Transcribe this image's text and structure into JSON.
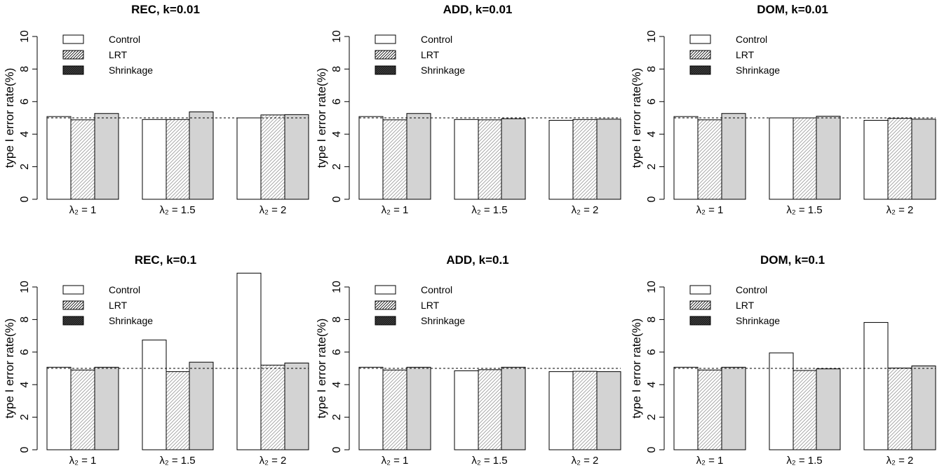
{
  "chart_data": [
    {
      "type": "bar",
      "title": "REC, k=0.01",
      "ylabel": "type I error rate(%)",
      "ylim": [
        0,
        10
      ],
      "yticks": [
        "0",
        "2",
        "4",
        "6",
        "8",
        "10"
      ],
      "categories": [
        "λ₂ = 1",
        "λ₂ = 1.5",
        "λ₂ = 2"
      ],
      "reference_line": 5,
      "legend": [
        "Control",
        "LRT",
        "Shrinkage"
      ],
      "series": [
        {
          "name": "Control",
          "values": [
            5.08,
            4.9,
            5.0
          ]
        },
        {
          "name": "LRT",
          "values": [
            4.88,
            4.9,
            5.18
          ]
        },
        {
          "name": "Shrinkage",
          "values": [
            5.27,
            5.37,
            5.2
          ]
        }
      ]
    },
    {
      "type": "bar",
      "title": "ADD, k=0.01",
      "ylabel": "type I error rate(%)",
      "ylim": [
        0,
        10
      ],
      "yticks": [
        "0",
        "2",
        "4",
        "6",
        "8",
        "10"
      ],
      "categories": [
        "λ₂ = 1",
        "λ₂ = 1.5",
        "λ₂ = 2"
      ],
      "reference_line": 5,
      "legend": [
        "Control",
        "LRT",
        "Shrinkage"
      ],
      "series": [
        {
          "name": "Control",
          "values": [
            5.08,
            4.9,
            4.85
          ]
        },
        {
          "name": "LRT",
          "values": [
            4.88,
            4.88,
            4.9
          ]
        },
        {
          "name": "Shrinkage",
          "values": [
            5.27,
            4.95,
            4.92
          ]
        }
      ]
    },
    {
      "type": "bar",
      "title": "DOM, k=0.01",
      "ylabel": "type I error rate(%)",
      "ylim": [
        0,
        10
      ],
      "yticks": [
        "0",
        "2",
        "4",
        "6",
        "8",
        "10"
      ],
      "categories": [
        "λ₂ = 1",
        "λ₂ = 1.5",
        "λ₂ = 2"
      ],
      "reference_line": 5,
      "legend": [
        "Control",
        "LRT",
        "Shrinkage"
      ],
      "series": [
        {
          "name": "Control",
          "values": [
            5.08,
            5.0,
            4.85
          ]
        },
        {
          "name": "LRT",
          "values": [
            4.88,
            5.0,
            4.97
          ]
        },
        {
          "name": "Shrinkage",
          "values": [
            5.27,
            5.1,
            4.92
          ]
        }
      ]
    },
    {
      "type": "bar",
      "title": "REC, k=0.1",
      "ylabel": "type I error rate(%)",
      "ylim": [
        0,
        10
      ],
      "yticks": [
        "0",
        "2",
        "4",
        "6",
        "8",
        "10"
      ],
      "categories": [
        "λ₂ = 1",
        "λ₂ = 1.5",
        "λ₂ = 2"
      ],
      "reference_line": 5,
      "legend": [
        "Control",
        "LRT",
        "Shrinkage"
      ],
      "series": [
        {
          "name": "Control",
          "values": [
            5.07,
            6.74,
            10.85
          ]
        },
        {
          "name": "LRT",
          "values": [
            4.9,
            4.8,
            5.2
          ]
        },
        {
          "name": "Shrinkage",
          "values": [
            5.07,
            5.38,
            5.33
          ]
        }
      ]
    },
    {
      "type": "bar",
      "title": "ADD, k=0.1",
      "ylabel": "type I error rate(%)",
      "ylim": [
        0,
        10
      ],
      "yticks": [
        "0",
        "2",
        "4",
        "6",
        "8",
        "10"
      ],
      "categories": [
        "λ₂ = 1",
        "λ₂ = 1.5",
        "λ₂ = 2"
      ],
      "reference_line": 5,
      "legend": [
        "Control",
        "LRT",
        "Shrinkage"
      ],
      "series": [
        {
          "name": "Control",
          "values": [
            5.07,
            4.85,
            4.8
          ]
        },
        {
          "name": "LRT",
          "values": [
            4.9,
            4.92,
            4.82
          ]
        },
        {
          "name": "Shrinkage",
          "values": [
            5.07,
            5.07,
            4.8
          ]
        }
      ]
    },
    {
      "type": "bar",
      "title": "DOM, k=0.1",
      "ylabel": "type I error rate(%)",
      "ylim": [
        0,
        10
      ],
      "yticks": [
        "0",
        "2",
        "4",
        "6",
        "8",
        "10"
      ],
      "categories": [
        "λ₂ = 1",
        "λ₂ = 1.5",
        "λ₂ = 2"
      ],
      "reference_line": 5,
      "legend": [
        "Control",
        "LRT",
        "Shrinkage"
      ],
      "series": [
        {
          "name": "Control",
          "values": [
            5.07,
            5.95,
            7.82
          ]
        },
        {
          "name": "LRT",
          "values": [
            4.9,
            4.87,
            5.02
          ]
        },
        {
          "name": "Shrinkage",
          "values": [
            5.07,
            4.97,
            5.15
          ]
        }
      ]
    }
  ],
  "colors": {
    "control": "#ffffff",
    "lrt": "#ffffff",
    "lrt_hatch": "#9a9a9a",
    "shrinkage": "#d3d3d3",
    "axis": "#000000"
  }
}
